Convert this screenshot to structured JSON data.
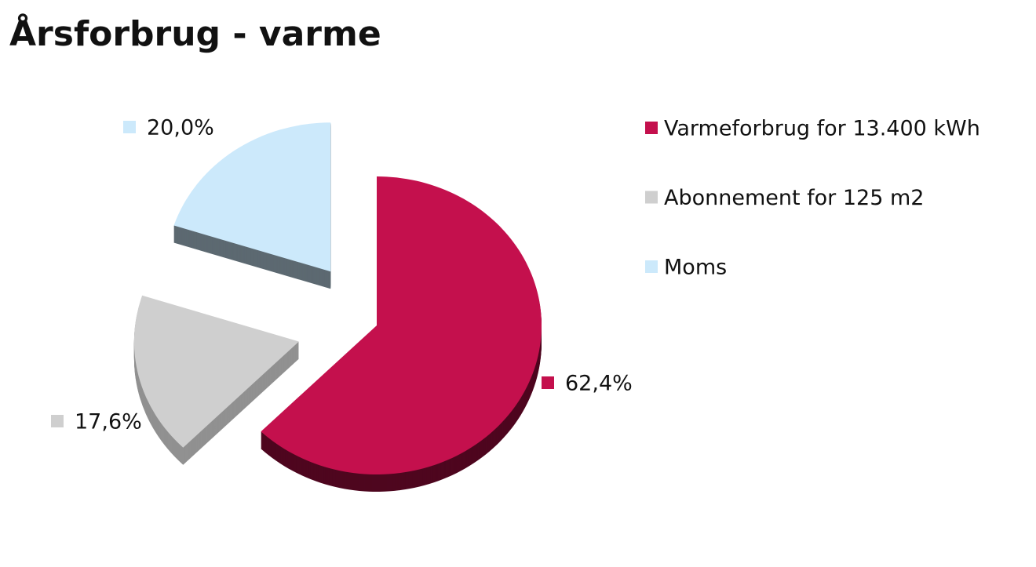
{
  "chart_data": {
    "type": "pie",
    "title": "Årsforbrug - varme",
    "categories": [
      "Varmeforbrug for 13.400 kWh",
      "Abonnement for 125 m2",
      "Moms"
    ],
    "values": [
      62.4,
      17.6,
      20.0
    ],
    "value_labels": [
      "62,4%",
      "17,6%",
      "20,0%"
    ],
    "colors": [
      "#c4104d",
      "#cfcfcf",
      "#cce9fb"
    ],
    "legend": "right"
  }
}
